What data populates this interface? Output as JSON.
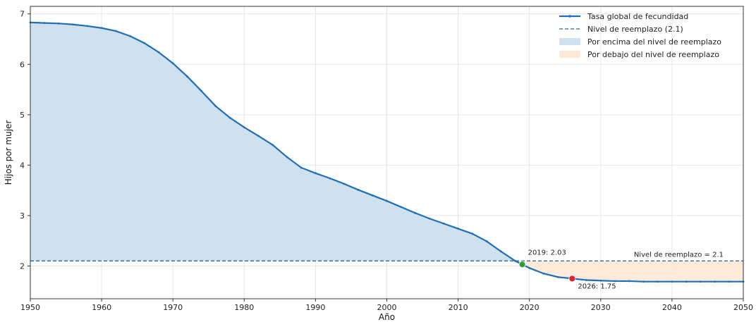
{
  "chart_data": {
    "type": "line",
    "title": "",
    "xlabel": "Año",
    "ylabel": "Hijos por mujer",
    "xlim": [
      1950,
      2050
    ],
    "ylim": [
      1.35,
      7.15
    ],
    "xticks": [
      1950,
      1960,
      1970,
      1980,
      1990,
      2000,
      2010,
      2020,
      2030,
      2040,
      2050
    ],
    "yticks": [
      2,
      3,
      4,
      5,
      6,
      7
    ],
    "grid": true,
    "legend_position": "top-right",
    "colors": {
      "line": "#1f6fb4",
      "reference": "#1f6fb4",
      "fill_above": "#cfe1ef",
      "fill_below": "#fde8d6",
      "marker_2019": "#2ca02c",
      "marker_2026": "#d62728"
    },
    "legend": [
      {
        "label": "Tasa global de fecundidad",
        "kind": "line"
      },
      {
        "label": "Nivel de reemplazo (2.1)",
        "kind": "dashed"
      },
      {
        "label": "Por encima del nivel de reemplazo",
        "kind": "fill_above"
      },
      {
        "label": "Por debajo del nivel de reemplazo",
        "kind": "fill_below"
      }
    ],
    "reference_level": 2.1,
    "reference_label": "Nivel de reemplazo = 2.1",
    "series": [
      {
        "name": "Tasa global de fecundidad",
        "x": [
          1950,
          1952,
          1954,
          1956,
          1958,
          1960,
          1962,
          1964,
          1966,
          1968,
          1970,
          1972,
          1974,
          1976,
          1978,
          1980,
          1982,
          1984,
          1986,
          1988,
          1990,
          1992,
          1994,
          1996,
          1998,
          2000,
          2002,
          2004,
          2006,
          2008,
          2010,
          2012,
          2014,
          2016,
          2018,
          2019,
          2020,
          2022,
          2024,
          2026,
          2028,
          2030,
          2032,
          2034,
          2036,
          2038,
          2040,
          2042,
          2044,
          2046,
          2048,
          2050
        ],
        "y": [
          6.83,
          6.82,
          6.81,
          6.79,
          6.76,
          6.72,
          6.66,
          6.56,
          6.42,
          6.24,
          6.02,
          5.76,
          5.47,
          5.17,
          4.94,
          4.75,
          4.58,
          4.4,
          4.16,
          3.95,
          3.84,
          3.74,
          3.63,
          3.51,
          3.4,
          3.29,
          3.17,
          3.05,
          2.94,
          2.84,
          2.74,
          2.64,
          2.49,
          2.29,
          2.1,
          2.03,
          1.96,
          1.85,
          1.78,
          1.75,
          1.72,
          1.71,
          1.7,
          1.7,
          1.69,
          1.69,
          1.69,
          1.69,
          1.69,
          1.69,
          1.69,
          1.69
        ]
      }
    ],
    "annotations": [
      {
        "x": 2019,
        "y": 2.03,
        "text": "2019: 2.03",
        "marker": "marker_2019"
      },
      {
        "x": 2026,
        "y": 1.75,
        "text": "2026: 1.75",
        "marker": "marker_2026"
      }
    ]
  }
}
